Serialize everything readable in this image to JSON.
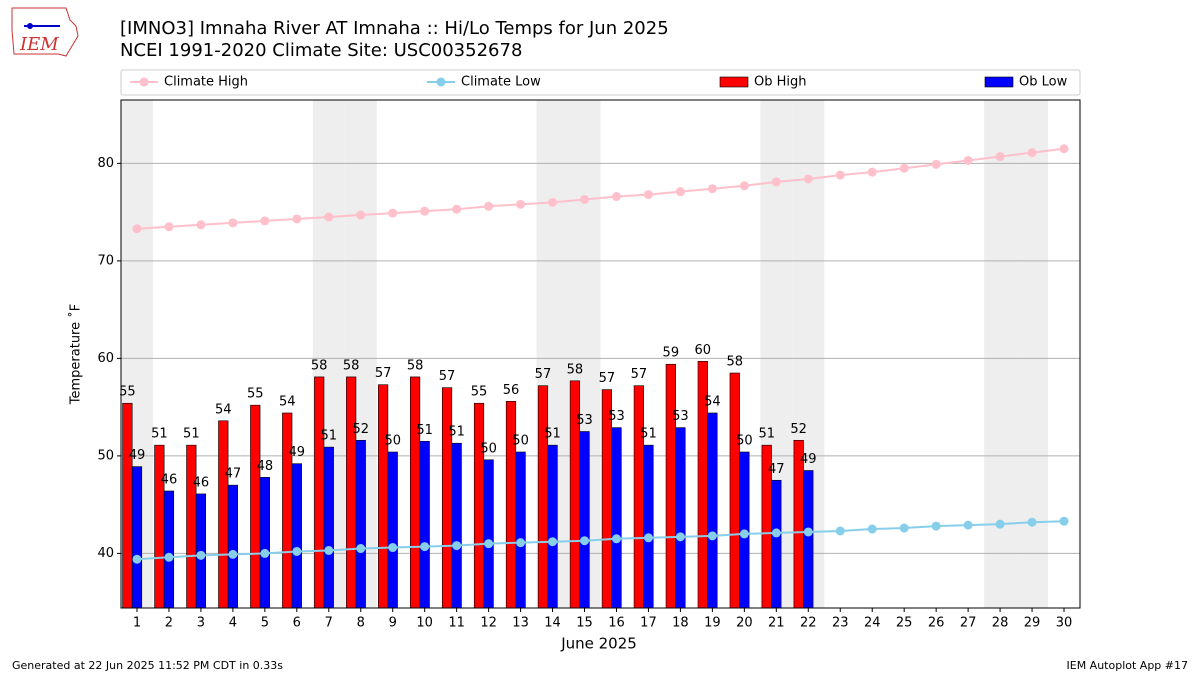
{
  "chart_data": {
    "type": "bar",
    "title": "[IMNO3] Imnaha River  AT Imnaha :: Hi/Lo Temps for Jun 2025",
    "subtitle": "NCEI 1991-2020 Climate Site: USC00352678",
    "logo_text": "IEM",
    "x_label": "June 2025",
    "y_label": "Temperature ˚F",
    "footer_left": "Generated at 22 Jun 2025 11:52 PM CDT in 0.33s",
    "footer_right": "IEM Autoplot App #17",
    "x": [
      1,
      2,
      3,
      4,
      5,
      6,
      7,
      8,
      9,
      10,
      11,
      12,
      13,
      14,
      15,
      16,
      17,
      18,
      19,
      20,
      21,
      22,
      23,
      24,
      25,
      26,
      27,
      28,
      29,
      30
    ],
    "xlim": [
      0.5,
      30.5
    ],
    "ylim": [
      34.4,
      86.5
    ],
    "yticks": [
      40,
      50,
      60,
      70,
      80
    ],
    "grid": true,
    "weekend_days": [
      1,
      7,
      8,
      14,
      15,
      21,
      22,
      28,
      29
    ],
    "weekend_color": "#eeeeee",
    "series": [
      {
        "name": "Climate High",
        "type": "line",
        "color": "#ffc0cb",
        "values": [
          73.3,
          73.5,
          73.7,
          73.9,
          74.1,
          74.3,
          74.5,
          74.7,
          74.9,
          75.1,
          75.3,
          75.6,
          75.8,
          76.0,
          76.3,
          76.6,
          76.8,
          77.1,
          77.4,
          77.7,
          78.1,
          78.4,
          78.8,
          79.1,
          79.5,
          79.9,
          80.3,
          80.7,
          81.1,
          81.5
        ]
      },
      {
        "name": "Climate Low",
        "type": "line",
        "color": "#87ceeb",
        "values": [
          39.4,
          39.6,
          39.8,
          39.9,
          40.0,
          40.2,
          40.3,
          40.5,
          40.6,
          40.7,
          40.8,
          41.0,
          41.1,
          41.2,
          41.3,
          41.5,
          41.6,
          41.7,
          41.8,
          42.0,
          42.1,
          42.2,
          42.3,
          42.5,
          42.6,
          42.8,
          42.9,
          43.0,
          43.2,
          43.3
        ]
      },
      {
        "name": "Ob High",
        "type": "bar",
        "color": "#ff0000",
        "values": [
          55.4,
          51.1,
          51.1,
          53.6,
          55.2,
          54.4,
          58.1,
          58.1,
          57.3,
          58.1,
          57.0,
          55.4,
          55.6,
          57.2,
          57.7,
          56.8,
          57.2,
          59.4,
          59.7,
          58.5,
          51.1,
          51.6,
          null,
          null,
          null,
          null,
          null,
          null,
          null,
          null
        ],
        "value_labels": [
          "55",
          "51",
          "51",
          "54",
          "55",
          "54",
          "58",
          "58",
          "57",
          "58",
          "57",
          "55",
          "56",
          "57",
          "58",
          "57",
          "57",
          "59",
          "60",
          "58",
          "51",
          "52",
          null,
          null,
          null,
          null,
          null,
          null,
          null,
          null
        ]
      },
      {
        "name": "Ob Low",
        "type": "bar",
        "color": "#0000ff",
        "values": [
          48.9,
          46.4,
          46.1,
          47.0,
          47.8,
          49.2,
          50.9,
          51.6,
          50.4,
          51.5,
          51.3,
          49.6,
          50.4,
          51.1,
          52.5,
          52.9,
          51.1,
          52.9,
          54.4,
          50.4,
          47.5,
          48.5,
          null,
          null,
          null,
          null,
          null,
          null,
          null,
          null
        ],
        "value_labels": [
          "49",
          "46",
          "46",
          "47",
          "48",
          "49",
          "51",
          "52",
          "50",
          "51",
          "51",
          "50",
          "50",
          "51",
          "53",
          "53",
          "51",
          "53",
          "54",
          "50",
          "47",
          "49",
          null,
          null,
          null,
          null,
          null,
          null,
          null,
          null
        ]
      }
    ]
  }
}
